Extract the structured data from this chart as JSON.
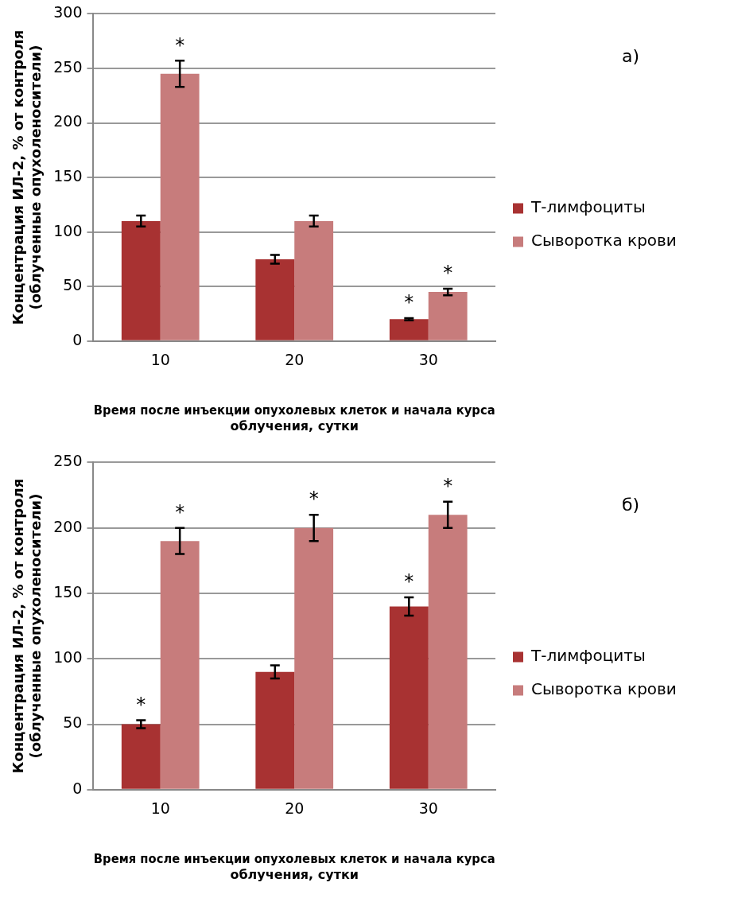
{
  "chart_data": [
    {
      "type": "bar",
      "xlabel": "Время после инъекции опухолевых клеток и начала курса\nоблучения, сутки",
      "ylabel": "Концентрация ИЛ-2, % от контроля\n(облученные опухоленосители)",
      "categories": [
        "10",
        "20",
        "30"
      ],
      "series": [
        {
          "name": "Т-лимфоциты",
          "color": "#a83232",
          "values": [
            110,
            75,
            20
          ],
          "errors": [
            5,
            4,
            1
          ]
        },
        {
          "name": "Сыворотка крови",
          "color": "#c77c7c",
          "values": [
            245,
            110,
            45
          ],
          "errors": [
            12,
            5,
            3
          ]
        }
      ],
      "ylim": [
        0,
        300
      ],
      "yticks": [
        0,
        50,
        100,
        150,
        200,
        250,
        300
      ],
      "grid": "y",
      "legend": "right",
      "annotations": [
        "а)",
        {
          "text": "*",
          "x": "10",
          "y": 245
        },
        {
          "text": "*",
          "x": "30",
          "y": 20
        },
        {
          "text": "*",
          "x": "30",
          "y": 45
        }
      ]
    },
    {
      "type": "bar",
      "xlabel": "Время после инъекции опухолевых клеток и начала курса\nоблучения, сутки",
      "ylabel": "Концентрация ИЛ-2, % от контроля\n(облученные опухоленосители)",
      "categories": [
        "10",
        "20",
        "30"
      ],
      "series": [
        {
          "name": "Т-лимфоциты",
          "color": "#a83232",
          "values": [
            50,
            90,
            140
          ],
          "errors": [
            3,
            5,
            7
          ]
        },
        {
          "name": "Сыворотка крови",
          "color": "#c77c7c",
          "values": [
            190,
            200,
            210
          ],
          "errors": [
            10,
            10,
            10
          ]
        }
      ],
      "ylim": [
        0,
        250
      ],
      "yticks": [
        0,
        50,
        100,
        150,
        200,
        250
      ],
      "grid": "y",
      "legend": "right",
      "annotations": [
        "б)",
        {
          "text": "*",
          "x": "10",
          "y": 50
        },
        {
          "text": "*",
          "x": "10",
          "y": 190
        },
        {
          "text": "*",
          "x": "20",
          "y": 200
        },
        {
          "text": "*",
          "x": "30",
          "y": 140
        },
        {
          "text": "*",
          "x": "30",
          "y": 210
        }
      ]
    }
  ]
}
